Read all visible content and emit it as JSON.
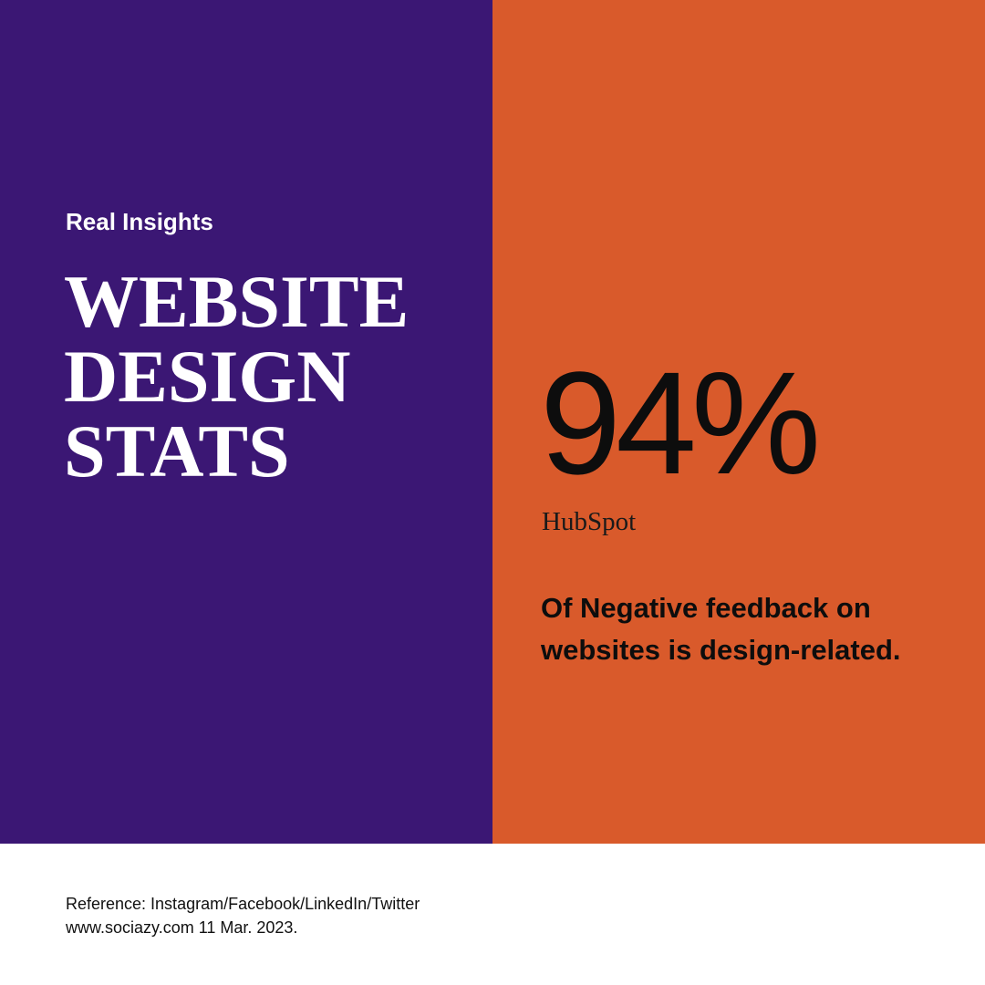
{
  "colors": {
    "left_panel": "#3b1774",
    "right_panel": "#d95a2b",
    "footer": "#ffffff",
    "light_text": "#ffffff",
    "dark_text": "#0d0d0d"
  },
  "left": {
    "eyebrow": "Real Insights",
    "title_lines": [
      "WEBSITE",
      "DESIGN",
      "STATS"
    ]
  },
  "right": {
    "stat_value": "94%",
    "source": "HubSpot",
    "description": "Of Negative feedback on websites is design-related."
  },
  "footer": {
    "reference": "Reference: Instagram/Facebook/LinkedIn/Twitter",
    "site_date": "www.sociazy.com 11 Mar. 2023."
  }
}
